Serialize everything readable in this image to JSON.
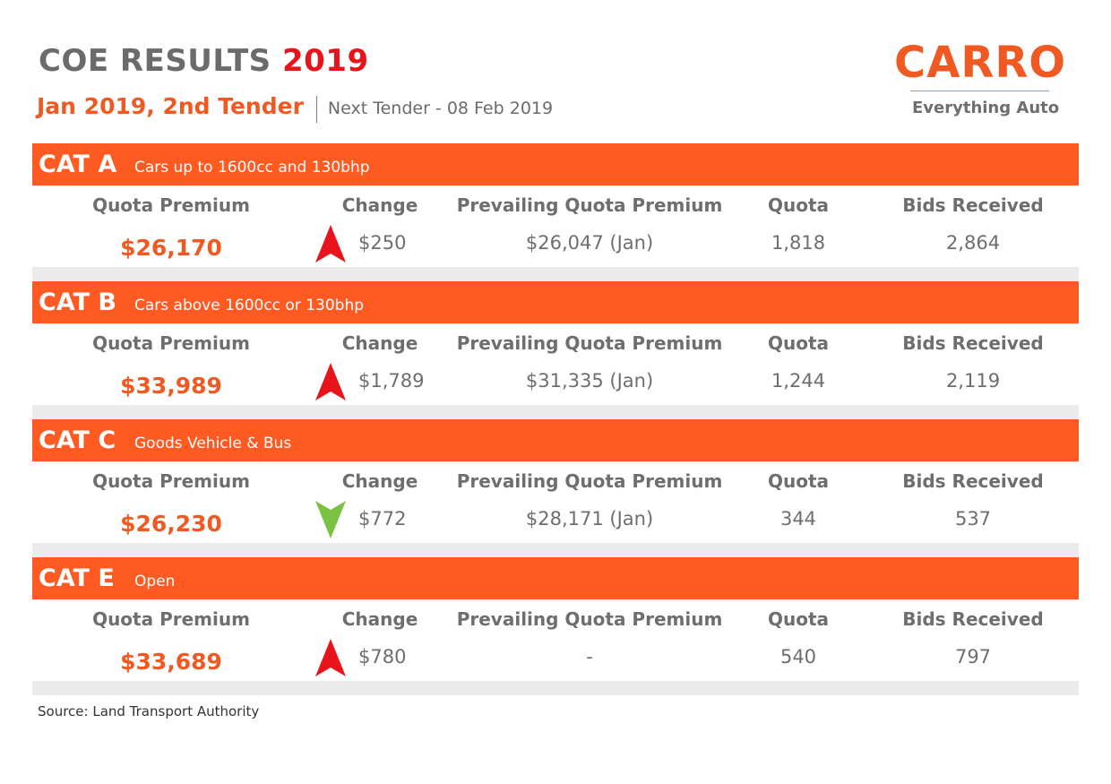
{
  "header": {
    "title_main": "COE RESULTS",
    "title_year": "2019",
    "tender": "Jan 2019, 2nd Tender",
    "next_tender": "Next Tender - 08 Feb 2019"
  },
  "logo": {
    "wordmark": "CARRO",
    "tagline": "Everything Auto"
  },
  "columns": {
    "quota_premium": "Quota Premium",
    "change": "Change",
    "prevailing": "Prevailing Quota Premium",
    "quota": "Quota",
    "bids": "Bids Received"
  },
  "categories": [
    {
      "name": "CAT A",
      "description": "Cars up to 1600cc and 130bhp",
      "premium": "$26,170",
      "direction": "up",
      "change": "$250",
      "prevailing": "$26,047 (Jan)",
      "quota": "1,818",
      "bids": "2,864"
    },
    {
      "name": "CAT B",
      "description": "Cars above 1600cc or 130bhp",
      "premium": "$33,989",
      "direction": "up",
      "change": "$1,789",
      "prevailing": "$31,335 (Jan)",
      "quota": "1,244",
      "bids": "2,119"
    },
    {
      "name": "CAT C",
      "description": "Goods Vehicle & Bus",
      "premium": "$26,230",
      "direction": "down",
      "change": "$772",
      "prevailing": "$28,171 (Jan)",
      "quota": "344",
      "bids": "537"
    },
    {
      "name": "CAT E",
      "description": "Open",
      "premium": "$33,689",
      "direction": "up",
      "change": "$780",
      "prevailing": "-",
      "quota": "540",
      "bids": "797"
    }
  ],
  "colors": {
    "accent": "#ff5a22",
    "year_red": "#e8141c",
    "up_arrow": "#e8141c",
    "down_arrow": "#7cc242",
    "footer_band": "#ebebeb"
  },
  "source": "Source: Land Transport Authority"
}
